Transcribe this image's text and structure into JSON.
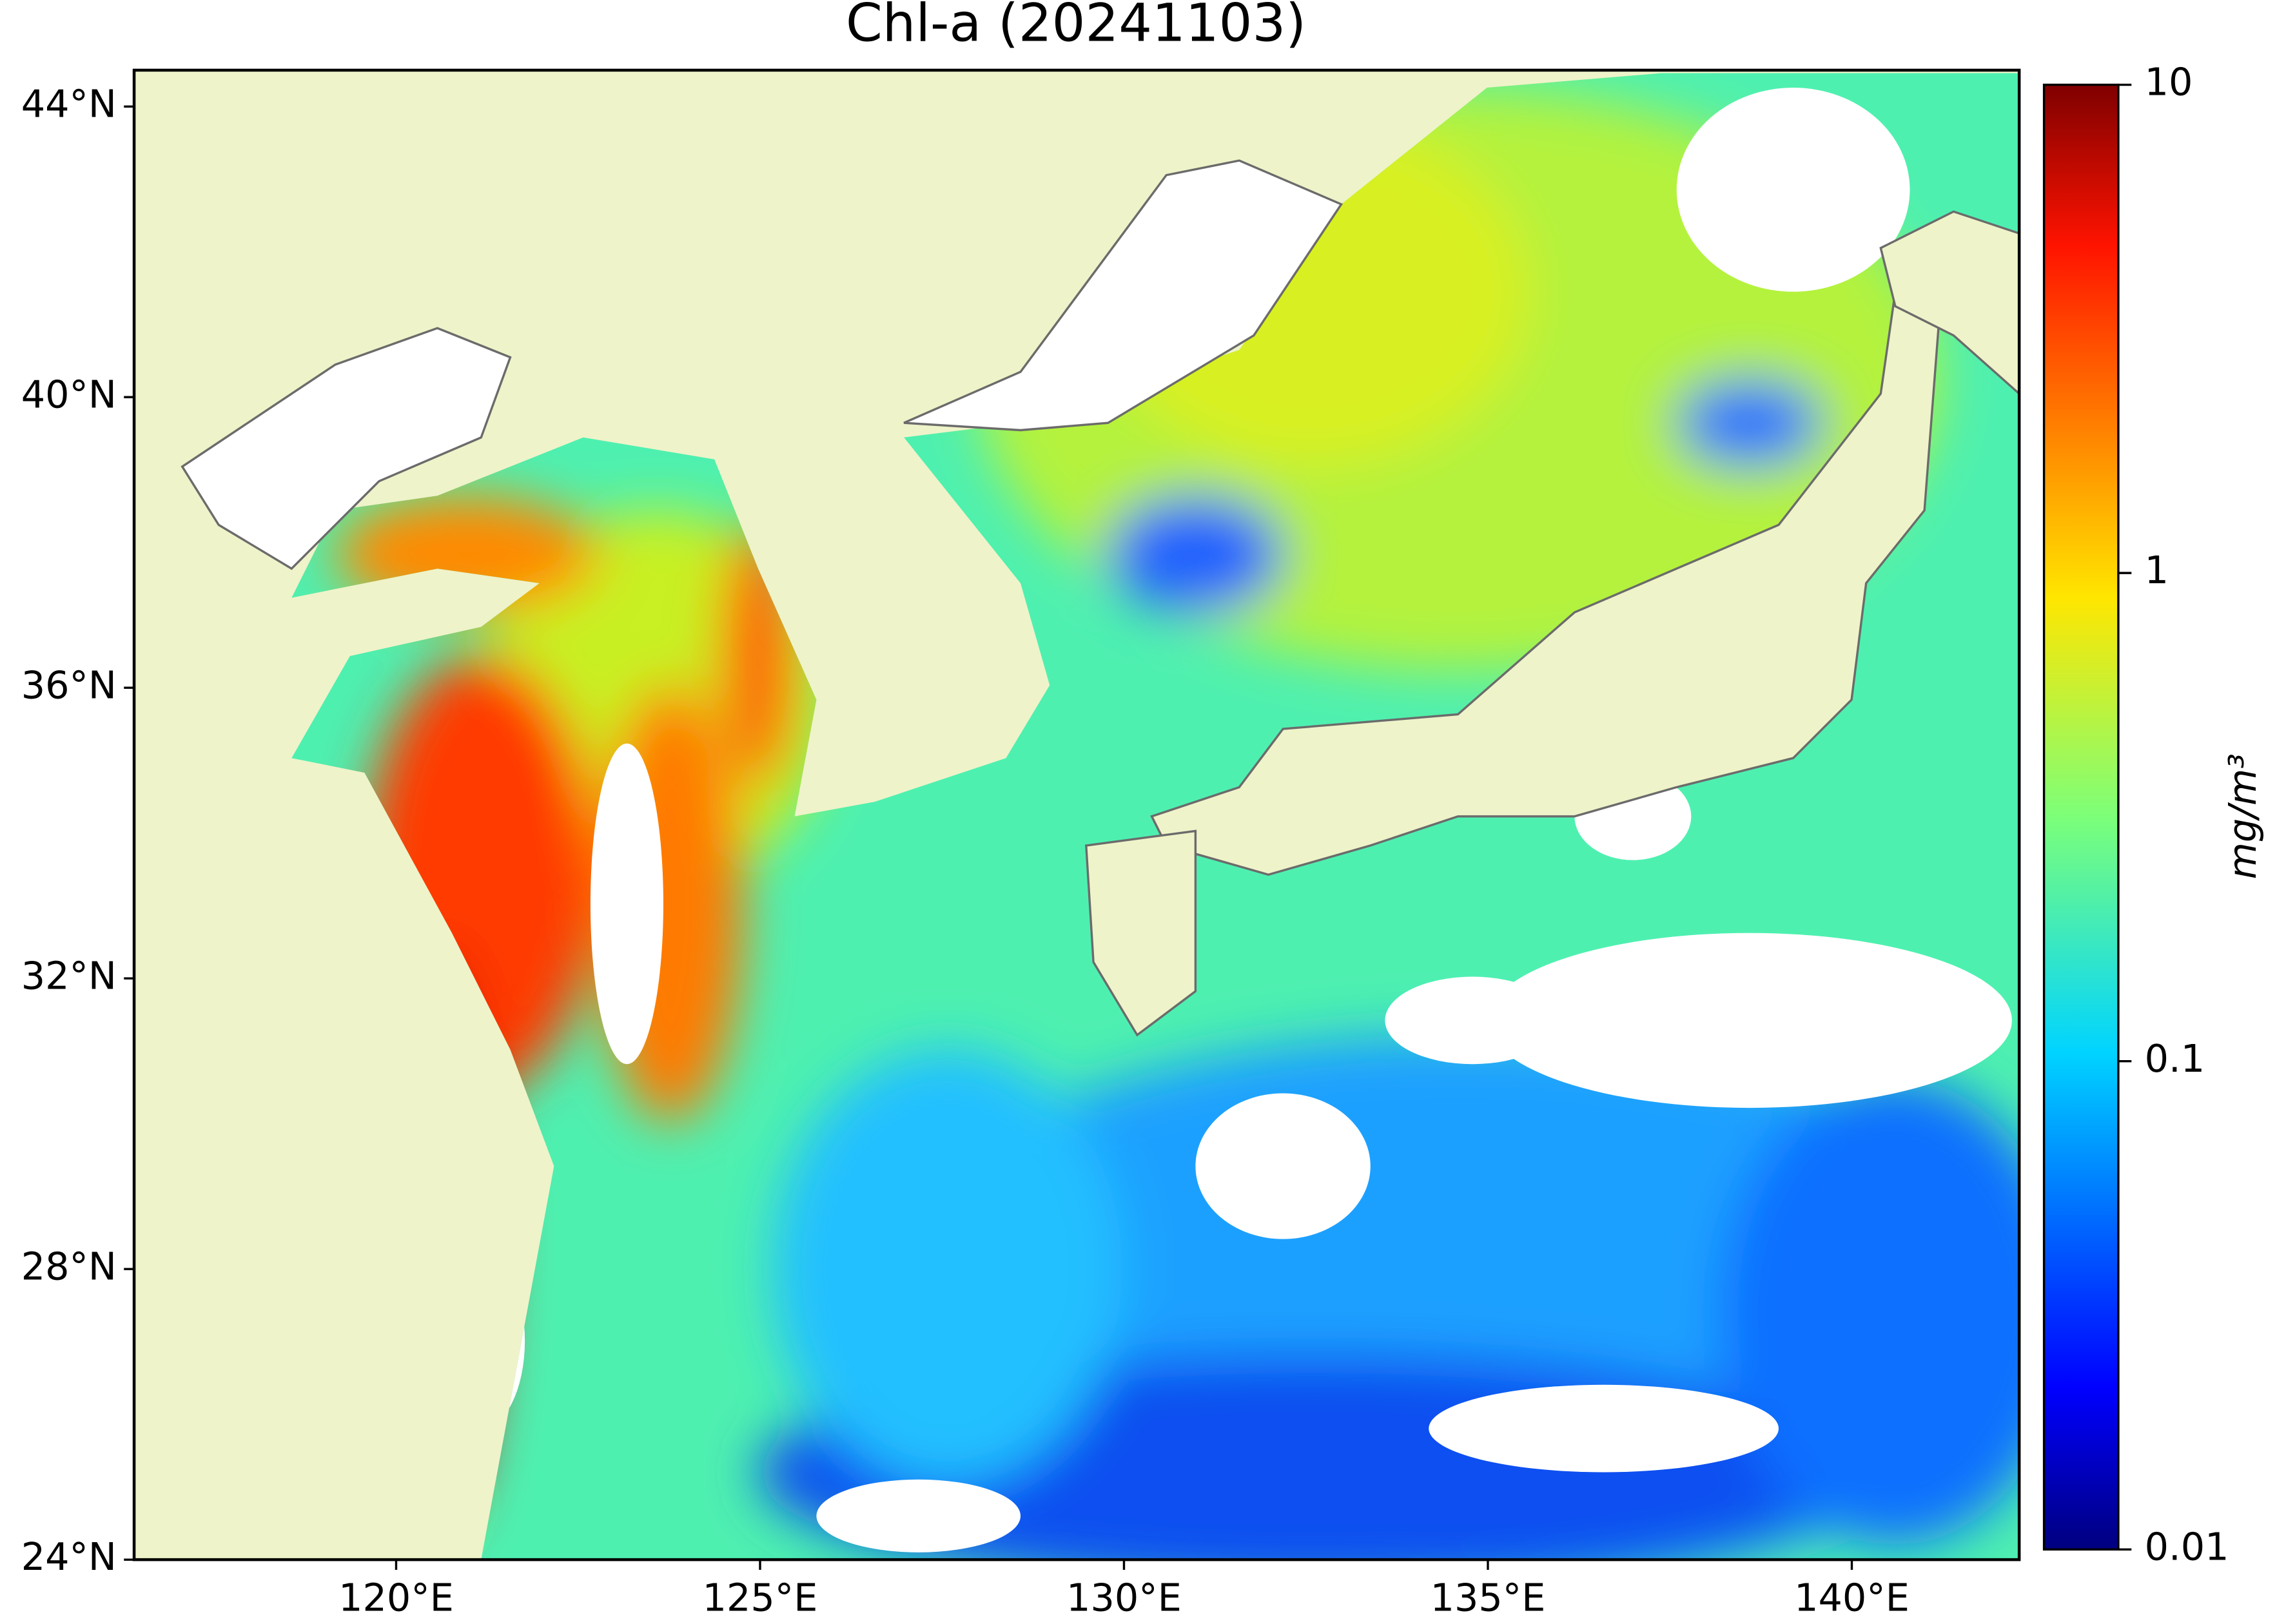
{
  "title": "Chl-a (20241103)",
  "map": {
    "xlim": [
      116.4,
      142.3
    ],
    "ylim": [
      24,
      44.5
    ],
    "xticks": [
      {
        "value": 120,
        "label": "120°E"
      },
      {
        "value": 125,
        "label": "125°E"
      },
      {
        "value": 130,
        "label": "130°E"
      },
      {
        "value": 135,
        "label": "135°E"
      },
      {
        "value": 140,
        "label": "140°E"
      }
    ],
    "yticks": [
      {
        "value": 24,
        "label": "24°N"
      },
      {
        "value": 28,
        "label": "28°N"
      },
      {
        "value": 32,
        "label": "32°N"
      },
      {
        "value": 36,
        "label": "36°N"
      },
      {
        "value": 40,
        "label": "40°N"
      },
      {
        "value": 44,
        "label": "44°N"
      }
    ]
  },
  "colorbar": {
    "scale": "log",
    "colormap": "jet",
    "clim": [
      0.01,
      10
    ],
    "ticks": [
      0.01,
      0.1,
      1,
      10
    ],
    "label": "mg/m³"
  }
}
